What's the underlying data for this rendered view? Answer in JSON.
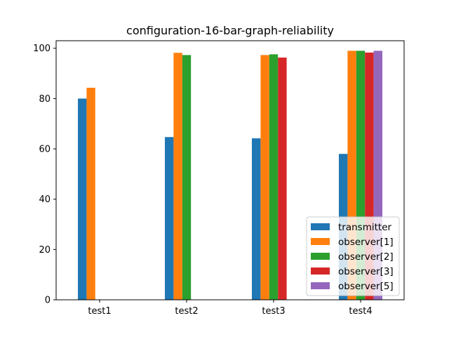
{
  "chart_data": {
    "type": "bar",
    "title": "configuration-16-bar-graph-reliability",
    "xlabel": "",
    "ylabel": "",
    "categories": [
      "test1",
      "test2",
      "test3",
      "test4"
    ],
    "ylim": [
      0,
      103
    ],
    "yticks": [
      0,
      20,
      40,
      60,
      80,
      100
    ],
    "grid": false,
    "legend_position": "lower-right",
    "series": [
      {
        "name": "transmitter",
        "color": "#1f77b4",
        "values": [
          80,
          64.7,
          64.2,
          58
        ]
      },
      {
        "name": "observer[1]",
        "color": "#ff7f0e",
        "values": [
          84.3,
          98.2,
          97.3,
          99
        ]
      },
      {
        "name": "observer[2]",
        "color": "#2ca02c",
        "values": [
          null,
          97.3,
          97.6,
          99
        ]
      },
      {
        "name": "observer[3]",
        "color": "#d62728",
        "values": [
          null,
          null,
          96.3,
          98.3
        ]
      },
      {
        "name": "observer[5]",
        "color": "#9467bd",
        "values": [
          null,
          null,
          null,
          99
        ]
      }
    ]
  }
}
